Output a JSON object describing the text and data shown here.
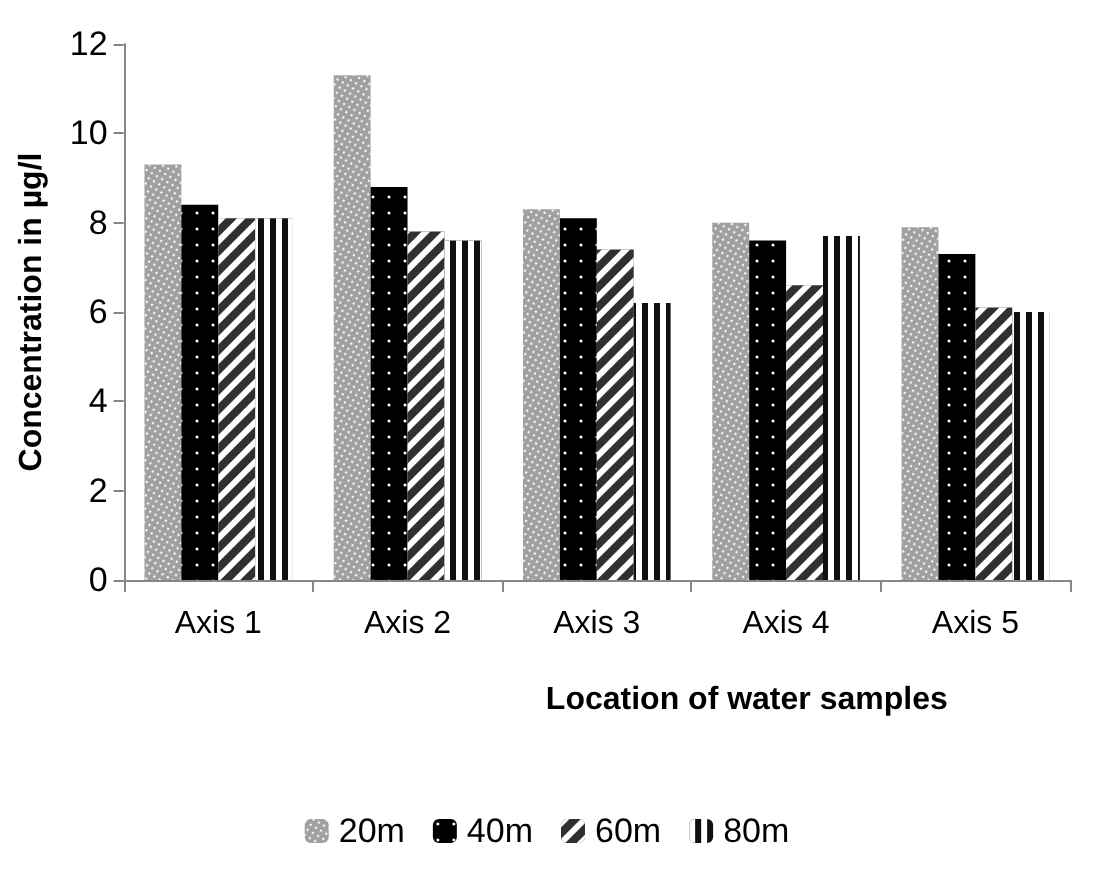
{
  "chart_data": {
    "type": "bar",
    "xlabel": "Location of water samples",
    "ylabel": "Concentration in µg/l",
    "categories": [
      "Axis 1",
      "Axis 2",
      "Axis 3",
      "Axis 4",
      "Axis 5"
    ],
    "series": [
      {
        "name": "20m",
        "color": "#a0a0a0",
        "values": [
          9.3,
          11.3,
          8.3,
          8.0,
          7.9
        ]
      },
      {
        "name": "40m",
        "color": "#000000",
        "values": [
          8.4,
          8.8,
          8.1,
          7.6,
          7.3
        ]
      },
      {
        "name": "60m",
        "color": "#303030",
        "values": [
          8.1,
          7.8,
          7.4,
          6.6,
          6.1
        ]
      },
      {
        "name": "80m",
        "color": "#101010",
        "values": [
          8.1,
          7.6,
          6.2,
          7.7,
          6.0
        ]
      }
    ],
    "ylim": [
      0,
      12
    ],
    "yticks": [
      0,
      2,
      4,
      6,
      8,
      10,
      12
    ],
    "grid": false,
    "legend": "bottom"
  }
}
